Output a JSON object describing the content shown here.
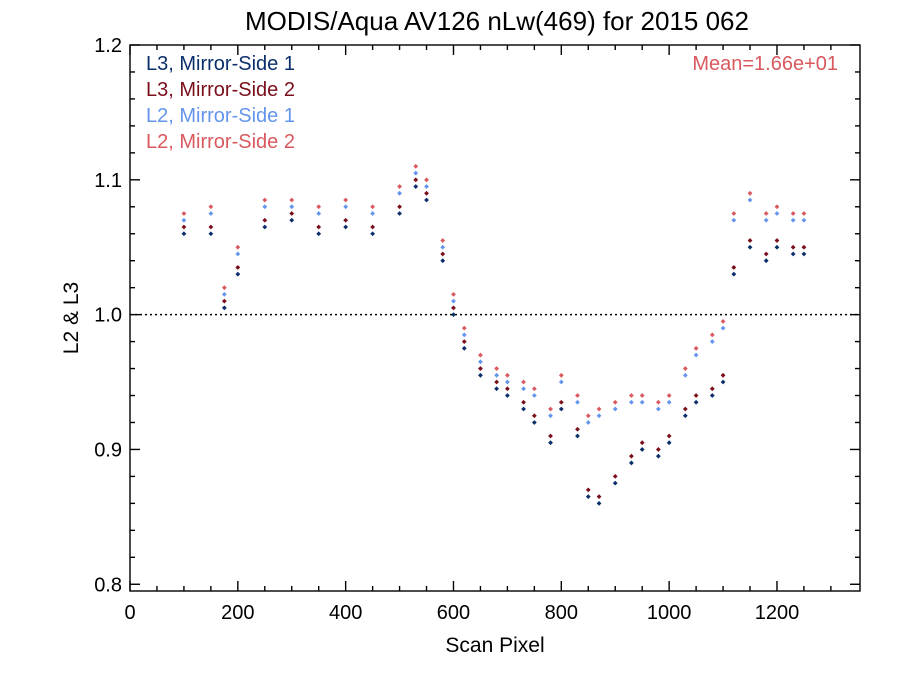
{
  "chart_data": {
    "type": "scatter",
    "title": "MODIS/Aqua AV126 nLw(469) for 2015 062",
    "xlabel": "Scan Pixel",
    "ylabel": "L2 & L3",
    "xlim": [
      0,
      1354
    ],
    "ylim": [
      0.795,
      1.2
    ],
    "xticks": [
      0,
      200,
      400,
      600,
      800,
      1000,
      1200
    ],
    "xtick_labels": [
      "0",
      "200",
      "400",
      "600",
      "800",
      "1000",
      "1200"
    ],
    "yticks": [
      0.8,
      0.9,
      1.0,
      1.1,
      1.2
    ],
    "ytick_labels": [
      "0.8",
      "0.9",
      "1.0",
      "1.1",
      "1.2"
    ],
    "reference_line": 1.0,
    "legend_position": "top-left",
    "annotation": {
      "text": "Mean=1.66e+01",
      "position": "top-right",
      "color": "#D9595F"
    },
    "series": [
      {
        "name": "L3, Mirror-Side 1",
        "color": "#0B2F6B",
        "x": [
          100,
          150,
          175,
          200,
          250,
          300,
          350,
          400,
          450,
          500,
          530,
          550,
          580,
          600,
          620,
          650,
          680,
          700,
          730,
          750,
          780,
          800,
          830,
          850,
          870,
          900,
          930,
          950,
          980,
          1000,
          1030,
          1050,
          1080,
          1100,
          1120,
          1150,
          1180,
          1200,
          1230,
          1250
        ],
        "y": [
          1.06,
          1.06,
          1.005,
          1.03,
          1.065,
          1.07,
          1.06,
          1.065,
          1.06,
          1.075,
          1.095,
          1.085,
          1.04,
          1.0,
          0.975,
          0.955,
          0.945,
          0.94,
          0.93,
          0.92,
          0.905,
          0.93,
          0.91,
          0.865,
          0.86,
          0.875,
          0.89,
          0.9,
          0.895,
          0.905,
          0.925,
          0.935,
          0.94,
          0.95,
          1.03,
          1.05,
          1.04,
          1.05,
          1.045,
          1.045
        ]
      },
      {
        "name": "L3, Mirror-Side 2",
        "color": "#7A0F1B",
        "x": [
          100,
          150,
          175,
          200,
          250,
          300,
          350,
          400,
          450,
          500,
          530,
          550,
          580,
          600,
          620,
          650,
          680,
          700,
          730,
          750,
          780,
          800,
          830,
          850,
          870,
          900,
          930,
          950,
          980,
          1000,
          1030,
          1050,
          1080,
          1100,
          1120,
          1150,
          1180,
          1200,
          1230,
          1250
        ],
        "y": [
          1.065,
          1.065,
          1.01,
          1.035,
          1.07,
          1.075,
          1.065,
          1.07,
          1.065,
          1.08,
          1.1,
          1.09,
          1.045,
          1.005,
          0.98,
          0.96,
          0.95,
          0.945,
          0.935,
          0.925,
          0.91,
          0.935,
          0.915,
          0.87,
          0.865,
          0.88,
          0.895,
          0.905,
          0.9,
          0.91,
          0.93,
          0.94,
          0.945,
          0.955,
          1.035,
          1.055,
          1.045,
          1.055,
          1.05,
          1.05
        ]
      },
      {
        "name": "L2, Mirror-Side 1",
        "color": "#6495ED",
        "x": [
          100,
          150,
          175,
          200,
          250,
          300,
          350,
          400,
          450,
          500,
          530,
          550,
          580,
          600,
          620,
          650,
          680,
          700,
          730,
          750,
          780,
          800,
          830,
          850,
          870,
          900,
          930,
          950,
          980,
          1000,
          1030,
          1050,
          1080,
          1100,
          1120,
          1150,
          1180,
          1200,
          1230,
          1250
        ],
        "y": [
          1.07,
          1.075,
          1.015,
          1.045,
          1.08,
          1.08,
          1.075,
          1.08,
          1.075,
          1.09,
          1.105,
          1.095,
          1.05,
          1.01,
          0.985,
          0.965,
          0.955,
          0.95,
          0.945,
          0.94,
          0.925,
          0.95,
          0.935,
          0.92,
          0.925,
          0.93,
          0.935,
          0.935,
          0.93,
          0.935,
          0.955,
          0.97,
          0.98,
          0.99,
          1.07,
          1.085,
          1.07,
          1.075,
          1.07,
          1.07
        ]
      },
      {
        "name": "L2, Mirror-Side 2",
        "color": "#D9595F",
        "x": [
          100,
          150,
          175,
          200,
          250,
          300,
          350,
          400,
          450,
          500,
          530,
          550,
          580,
          600,
          620,
          650,
          680,
          700,
          730,
          750,
          780,
          800,
          830,
          850,
          870,
          900,
          930,
          950,
          980,
          1000,
          1030,
          1050,
          1080,
          1100,
          1120,
          1150,
          1180,
          1200,
          1230,
          1250
        ],
        "y": [
          1.075,
          1.08,
          1.02,
          1.05,
          1.085,
          1.085,
          1.08,
          1.085,
          1.08,
          1.095,
          1.11,
          1.1,
          1.055,
          1.015,
          0.99,
          0.97,
          0.96,
          0.955,
          0.95,
          0.945,
          0.93,
          0.955,
          0.94,
          0.925,
          0.93,
          0.935,
          0.94,
          0.94,
          0.935,
          0.94,
          0.96,
          0.975,
          0.985,
          0.995,
          1.075,
          1.09,
          1.075,
          1.08,
          1.075,
          1.075
        ]
      }
    ]
  }
}
